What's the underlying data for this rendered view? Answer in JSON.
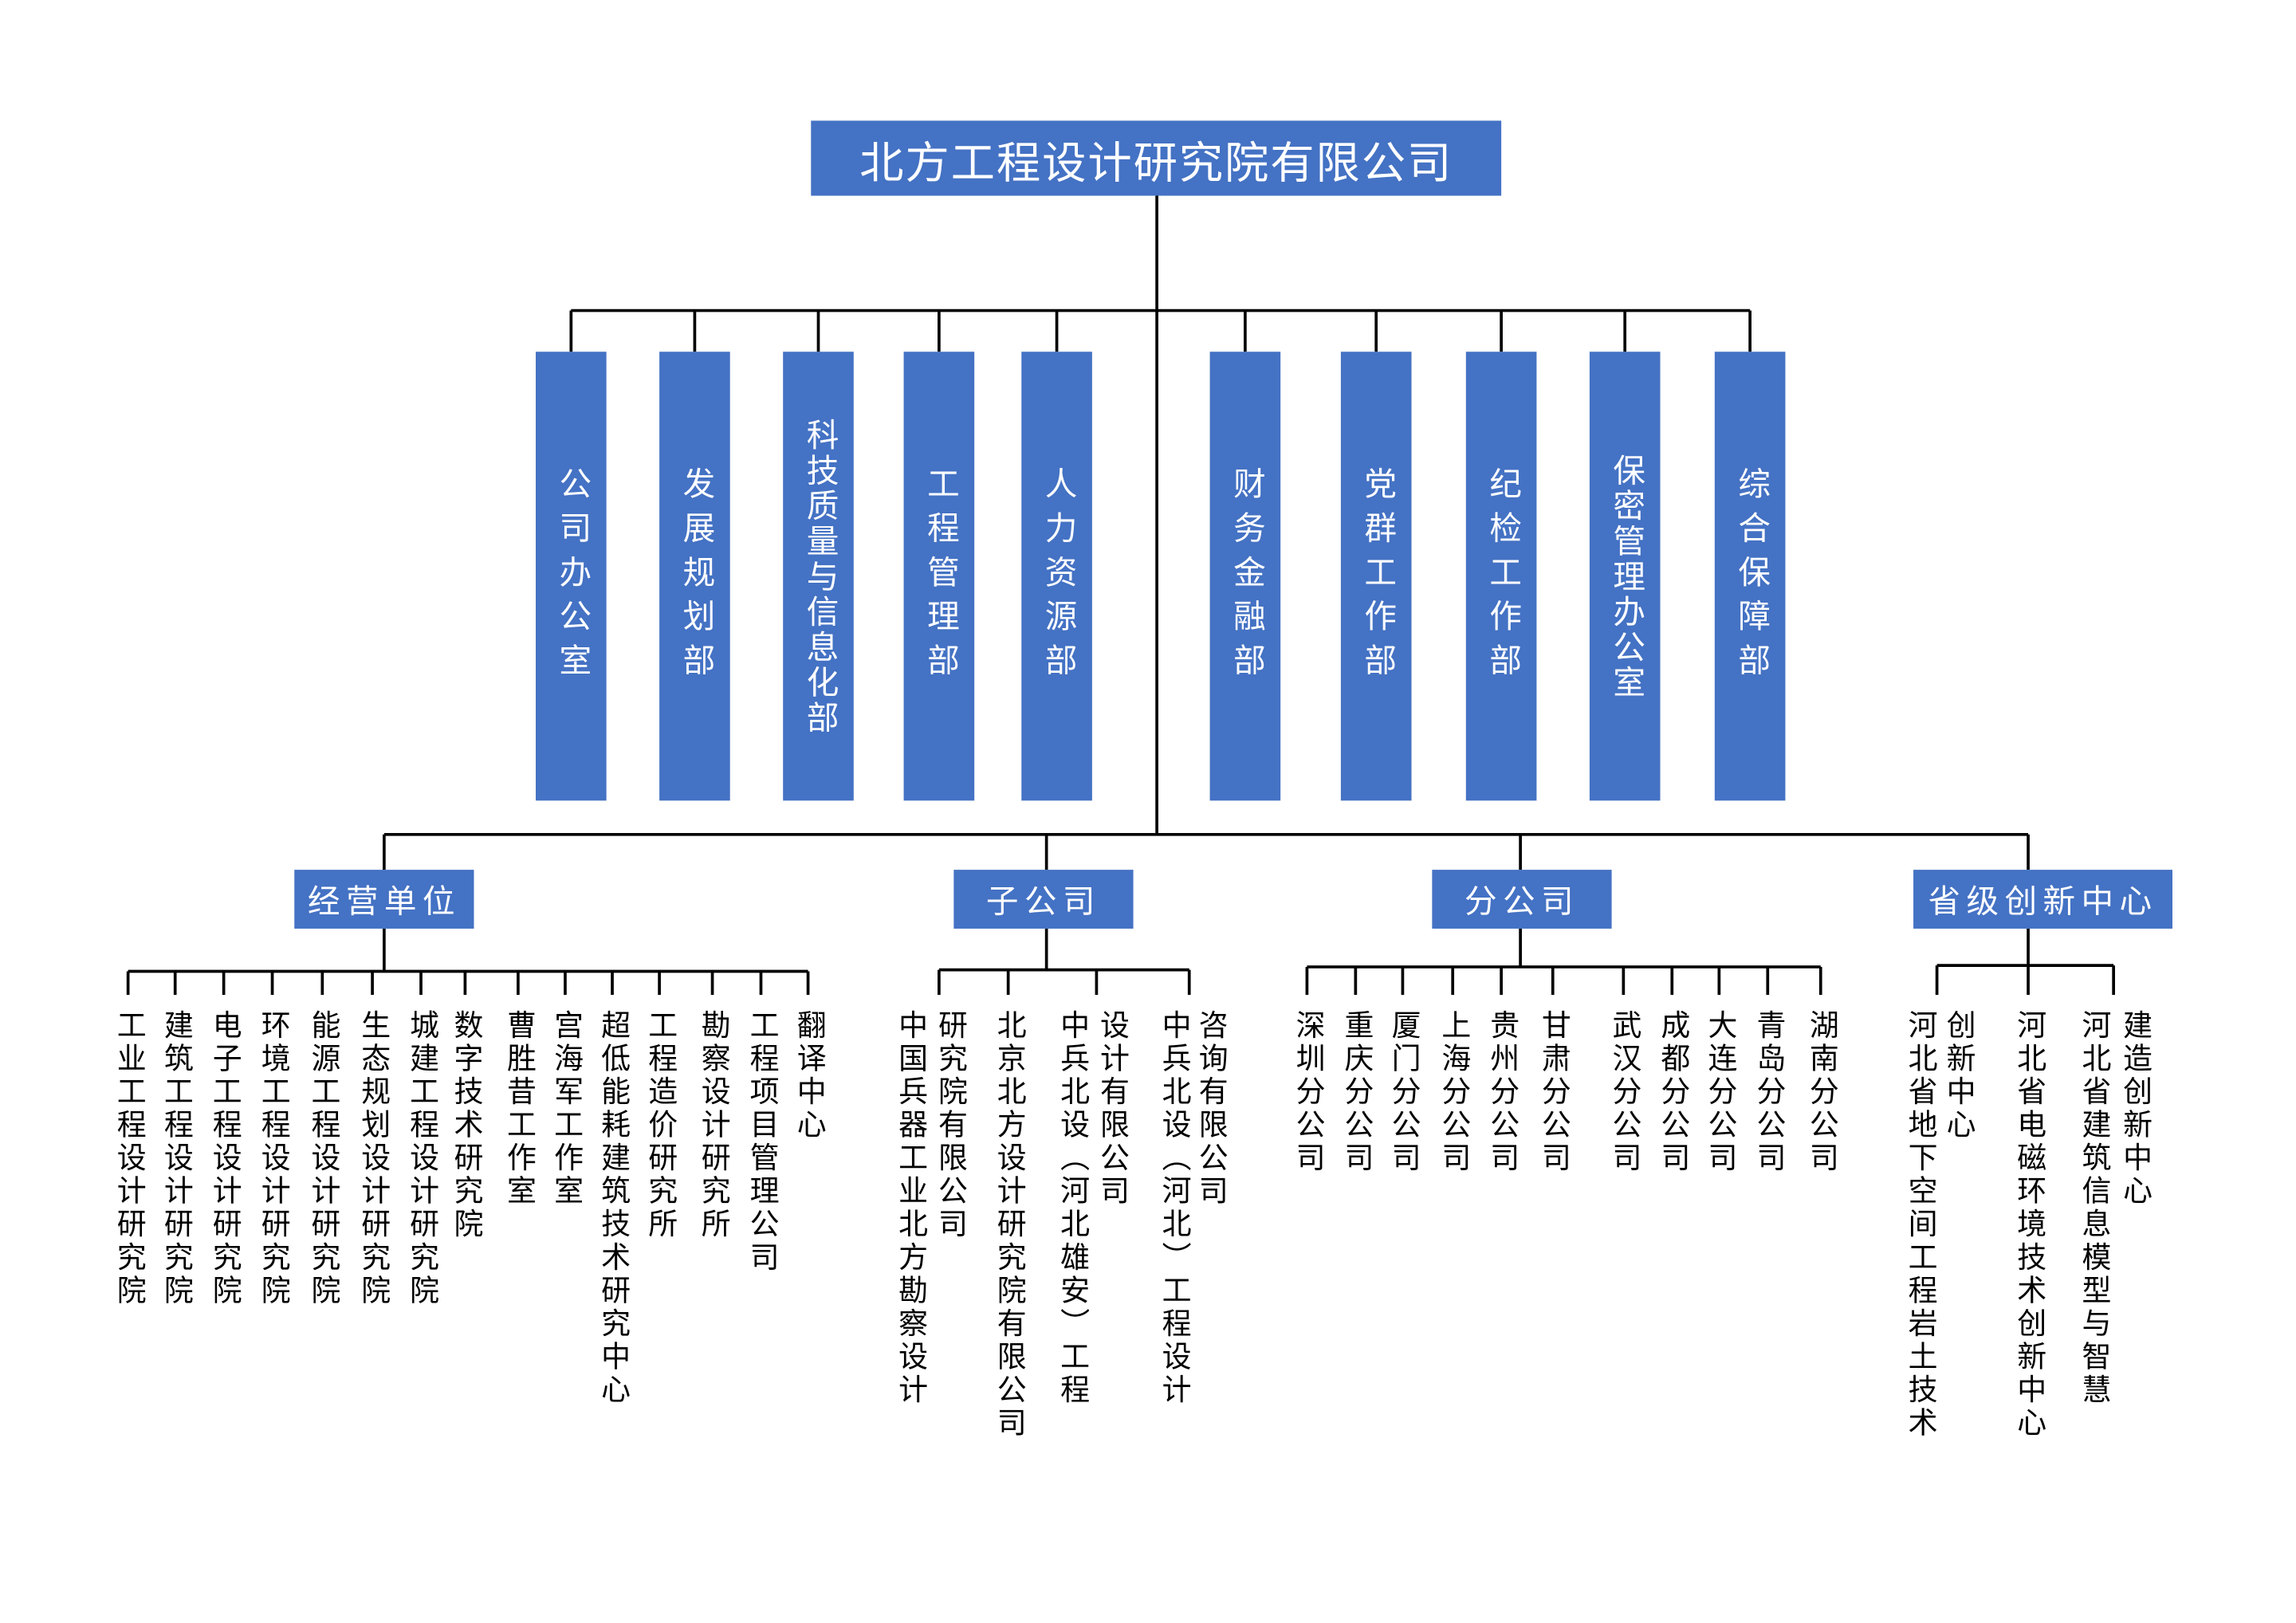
{
  "colors": {
    "box_fill": "#4472C4",
    "box_text": "#FFFFFF",
    "line": "#000000"
  },
  "root": {
    "title": "北方工程设计研究院有限公司"
  },
  "departments": [
    "公司办公室",
    "发展规划部",
    "科技质量与信息化部",
    "工程管理部",
    "人力资源部",
    "财务金融部",
    "党群工作部",
    "纪检工作部",
    "保密管理办公室",
    "综合保障部"
  ],
  "groups": [
    {
      "label": "经营单位",
      "items": [
        {
          "lines": [
            "工业工程设计研究院"
          ]
        },
        {
          "lines": [
            "建筑工程设计研究院"
          ]
        },
        {
          "lines": [
            "电子工程设计研究院"
          ]
        },
        {
          "lines": [
            "环境工程设计研究院"
          ]
        },
        {
          "lines": [
            "能源工程设计研究院"
          ]
        },
        {
          "lines": [
            "生态规划设计研究院"
          ]
        },
        {
          "lines": [
            "城建工程设计研究院"
          ]
        },
        {
          "lines": [
            "数字技术研究院"
          ]
        },
        {
          "lines": [
            "曹胜昔工作室"
          ]
        },
        {
          "lines": [
            "宫海军工作室"
          ]
        },
        {
          "lines": [
            "超低能耗建筑技术研究中心"
          ]
        },
        {
          "lines": [
            "工程造价研究所"
          ]
        },
        {
          "lines": [
            "勘察设计研究所"
          ]
        },
        {
          "lines": [
            "工程项目管理公司"
          ]
        },
        {
          "lines": [
            "翻译中心"
          ]
        }
      ]
    },
    {
      "label": "子公司",
      "items": [
        {
          "lines": [
            "中国兵器工业北方勘察设计",
            "研究院有限公司"
          ]
        },
        {
          "lines": [
            "北京北方设计研究院有限公司"
          ]
        },
        {
          "lines": [
            "中兵北设（河北雄安）工程",
            "设计有限公司"
          ]
        },
        {
          "lines": [
            "中兵北设（河北）工程设计",
            "咨询有限公司"
          ]
        }
      ]
    },
    {
      "label": "分公司",
      "items": [
        {
          "lines": [
            "深圳分公司"
          ]
        },
        {
          "lines": [
            "重庆分公司"
          ]
        },
        {
          "lines": [
            "厦门分公司"
          ]
        },
        {
          "lines": [
            "上海分公司"
          ]
        },
        {
          "lines": [
            "贵州分公司"
          ]
        },
        {
          "lines": [
            "甘肃分公司"
          ]
        },
        {
          "lines": [
            "武汉分公司"
          ]
        },
        {
          "lines": [
            "成都分公司"
          ]
        },
        {
          "lines": [
            "大连分公司"
          ]
        },
        {
          "lines": [
            "青岛分公司"
          ]
        },
        {
          "lines": [
            "湖南分公司"
          ]
        }
      ]
    },
    {
      "label": "省级创新中心",
      "items": [
        {
          "lines": [
            "河北省地下空间工程岩土技术",
            "创新中心"
          ]
        },
        {
          "lines": [
            "河北省电磁环境技术创新中心"
          ]
        },
        {
          "lines": [
            "河北省建筑信息模型与智慧",
            "建造创新中心"
          ]
        }
      ]
    }
  ]
}
